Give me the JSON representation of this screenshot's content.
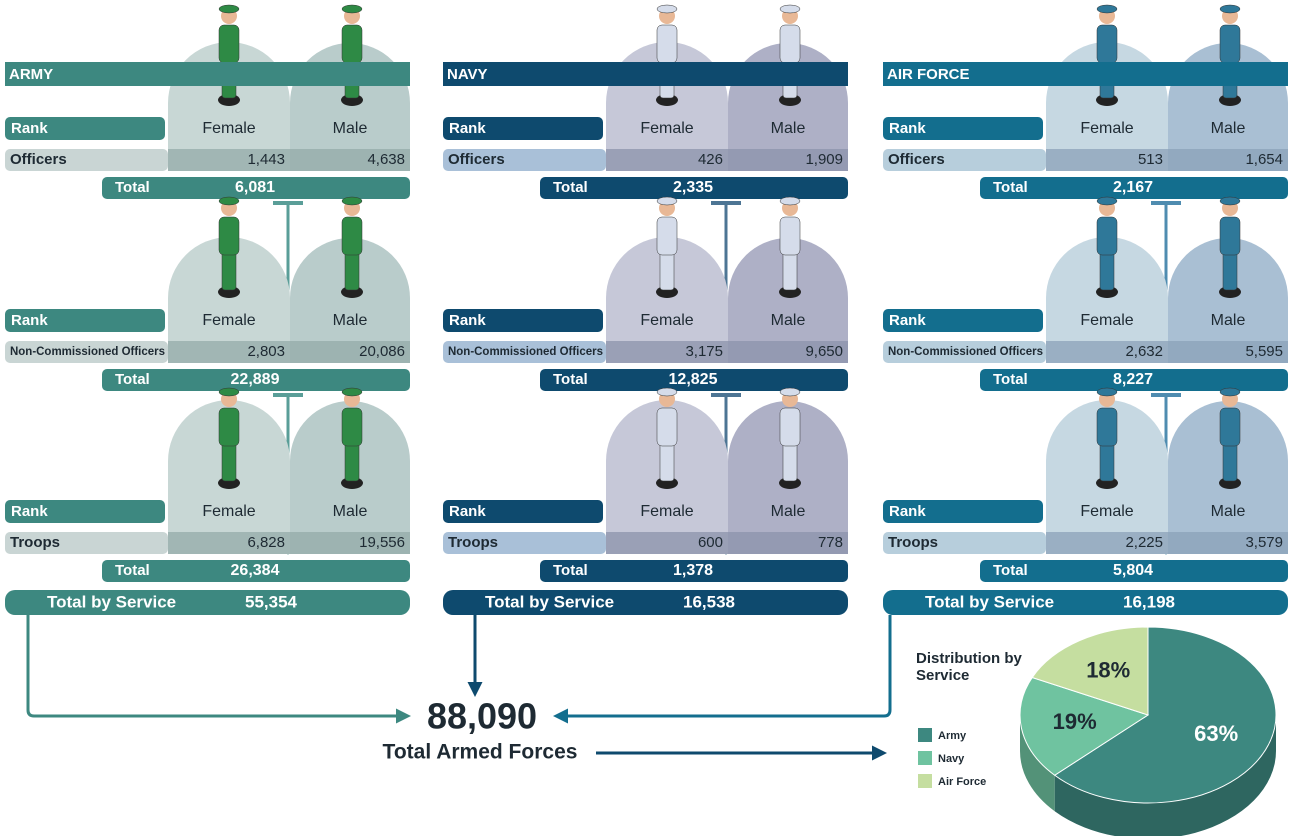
{
  "labels": {
    "rank": "Rank",
    "female": "Female",
    "male": "Male",
    "total": "Total",
    "total_by_service": "Total by Service"
  },
  "services": [
    {
      "name": "ARMY",
      "rows": [
        {
          "rank": "Officers",
          "female": "1,443",
          "male": "4,638",
          "total": "6,081"
        },
        {
          "rank": "Non-Commissioned Officers",
          "female": "2,803",
          "male": "20,086",
          "total": "22,889"
        },
        {
          "rank": "Troops",
          "female": "6,828",
          "male": "19,556",
          "total": "26,384"
        }
      ],
      "total": "55,354"
    },
    {
      "name": "NAVY",
      "rows": [
        {
          "rank": "Officers",
          "female": "426",
          "male": "1,909",
          "total": "2,335"
        },
        {
          "rank": "Non-Commissioned Officers",
          "female": "3,175",
          "male": "9,650",
          "total": "12,825"
        },
        {
          "rank": "Troops",
          "female": "600",
          "male": "778",
          "total": "1,378"
        }
      ],
      "total": "16,538"
    },
    {
      "name": "AIR FORCE",
      "rows": [
        {
          "rank": "Officers",
          "female": "513",
          "male": "1,654",
          "total": "2,167"
        },
        {
          "rank": "Non-Commissioned Officers",
          "female": "2,632",
          "male": "5,595",
          "total": "8,227"
        },
        {
          "rank": "Troops",
          "female": "2,225",
          "male": "3,579",
          "total": "5,804"
        }
      ],
      "total": "16,198"
    }
  ],
  "grand_total": {
    "value": "88,090",
    "label": "Total Armed Forces"
  },
  "chart_data": {
    "type": "pie",
    "title": "Distribution by Service",
    "categories": [
      "Army",
      "Navy",
      "Air Force"
    ],
    "values": [
      63,
      19,
      18
    ],
    "value_labels": [
      "63%",
      "19%",
      "18%"
    ],
    "colors": [
      "#3d8880",
      "#6fc3a0",
      "#c5dea0"
    ]
  }
}
